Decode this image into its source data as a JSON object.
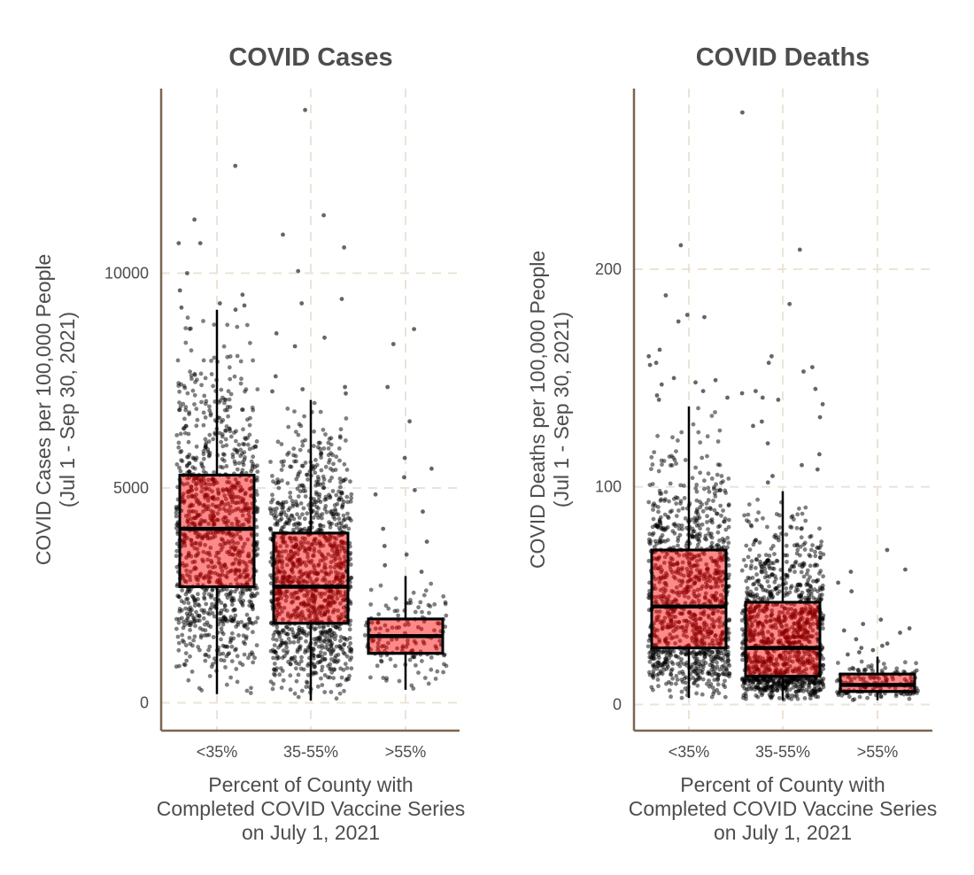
{
  "chart_data": [
    {
      "type": "box",
      "title": "COVID Cases",
      "xlabel": [
        "Percent of County with",
        "Completed COVID Vaccine Series",
        "on July 1, 2021"
      ],
      "ylabel": [
        "COVID Cases per 100,000 People",
        "(Jul 1 - Sep 30, 2021)"
      ],
      "ylim": [
        -650,
        14300
      ],
      "yticks": [
        0,
        5000,
        10000
      ],
      "ytick_labels": [
        "0",
        "5000",
        "10000"
      ],
      "grid": true,
      "categories": [
        "<35%",
        "35-55%",
        ">55%"
      ],
      "boxes": [
        {
          "whisker_low": 200,
          "q1": 2700,
          "median": 4050,
          "q3": 5300,
          "whisker_high": 9150
        },
        {
          "whisker_low": 50,
          "q1": 1850,
          "median": 2700,
          "q3": 3950,
          "whisker_high": 7050
        },
        {
          "whisker_low": 300,
          "q1": 1150,
          "median": 1550,
          "q3": 1950,
          "whisker_high": 2950
        }
      ],
      "outliers": [
        [
          12500,
          11250,
          10700,
          10700,
          10000,
          9600,
          9500,
          9300,
          9250,
          9200,
          9150
        ],
        [
          13800,
          11350,
          10900,
          10600,
          10050,
          9400,
          9300,
          8600,
          8500,
          8300,
          7600,
          7350,
          7300,
          7250,
          7200
        ],
        [
          8700,
          8350,
          7350,
          6550,
          5700,
          5450,
          5250,
          4950,
          4850,
          4450,
          4050,
          3750,
          3650,
          3450,
          3200,
          3050
        ]
      ],
      "point_counts": [
        1100,
        1200,
        150
      ],
      "colors": {
        "box_fill": "#fd8a8a",
        "points": "#000000",
        "points_on_box": "#8b0000",
        "grid": "#ece3d7",
        "axis": "#7a6650"
      }
    },
    {
      "type": "box",
      "title": "COVID Deaths",
      "xlabel": [
        "Percent of County with",
        "Completed COVID Vaccine Series",
        "on July 1, 2021"
      ],
      "ylabel": [
        "COVID Deaths per 100,000 People",
        "(Jul 1 - Sep 30, 2021)"
      ],
      "ylim": [
        -12,
        283
      ],
      "yticks": [
        0,
        100,
        200
      ],
      "ytick_labels": [
        "0",
        "100",
        "200"
      ],
      "grid": true,
      "categories": [
        "<35%",
        "35-55%",
        ">55%"
      ],
      "boxes": [
        {
          "whisker_low": 3,
          "q1": 26,
          "median": 45,
          "q3": 71,
          "whisker_high": 137
        },
        {
          "whisker_low": 2,
          "q1": 13,
          "median": 26,
          "q3": 47,
          "whisker_high": 98
        },
        {
          "whisker_low": 2,
          "q1": 6,
          "median": 9,
          "q3": 14,
          "whisker_high": 22
        }
      ],
      "outliers": [
        [
          211,
          188,
          179,
          178,
          176,
          163,
          160,
          157,
          156,
          150,
          149,
          148,
          147,
          144,
          142,
          141,
          140
        ],
        [
          272,
          209,
          184,
          160,
          157,
          155,
          153,
          145,
          144,
          143,
          141,
          140,
          138,
          132,
          130,
          128,
          120,
          115,
          110,
          108,
          105,
          102
        ],
        [
          71,
          62,
          61,
          56,
          52,
          39,
          37,
          35,
          34,
          33,
          30,
          28,
          27,
          26,
          25,
          24,
          23
        ]
      ],
      "point_counts": [
        1100,
        1200,
        150
      ],
      "colors": {
        "box_fill": "#fd8a8a",
        "points": "#000000",
        "points_on_box": "#8b0000",
        "grid": "#ece3d7",
        "axis": "#7a6650"
      }
    }
  ]
}
